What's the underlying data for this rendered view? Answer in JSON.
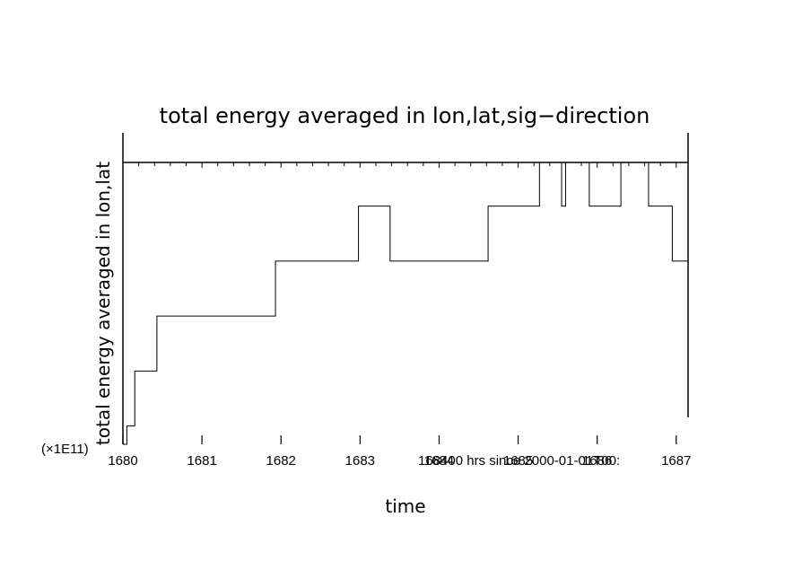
{
  "chart_data": {
    "type": "line",
    "step": true,
    "title": "total energy averaged in lon,lat,sig−direction",
    "xlabel": "time",
    "ylabel": "total energy averaged in lon,lat",
    "y_multiplier_label": "(×1E11)",
    "time_origin_note": "168400 hrs since 2000-01-01T00:",
    "xlim": [
      1680,
      1687.15
    ],
    "ylim": [
      0,
      1
    ],
    "x_ticks": [
      "1680",
      "1681",
      "1682",
      "1683",
      "1684",
      "1685",
      "1686",
      "1687"
    ],
    "grid": false,
    "series": [
      {
        "x": [
          1680,
          1680.05,
          1680.15,
          1680.43,
          1681.93,
          1682.98,
          1683.38,
          1684.62,
          1685.27,
          1685.55,
          1685.6,
          1685.9,
          1686.3,
          1686.65,
          1686.95
        ],
        "y": [
          0,
          0.065,
          0.26,
          0.455,
          0.65,
          0.845,
          0.65,
          0.845,
          1.0,
          0.845,
          1.0,
          0.845,
          1.0,
          0.845,
          0.65
        ],
        "x_end": 1687.15
      }
    ]
  }
}
